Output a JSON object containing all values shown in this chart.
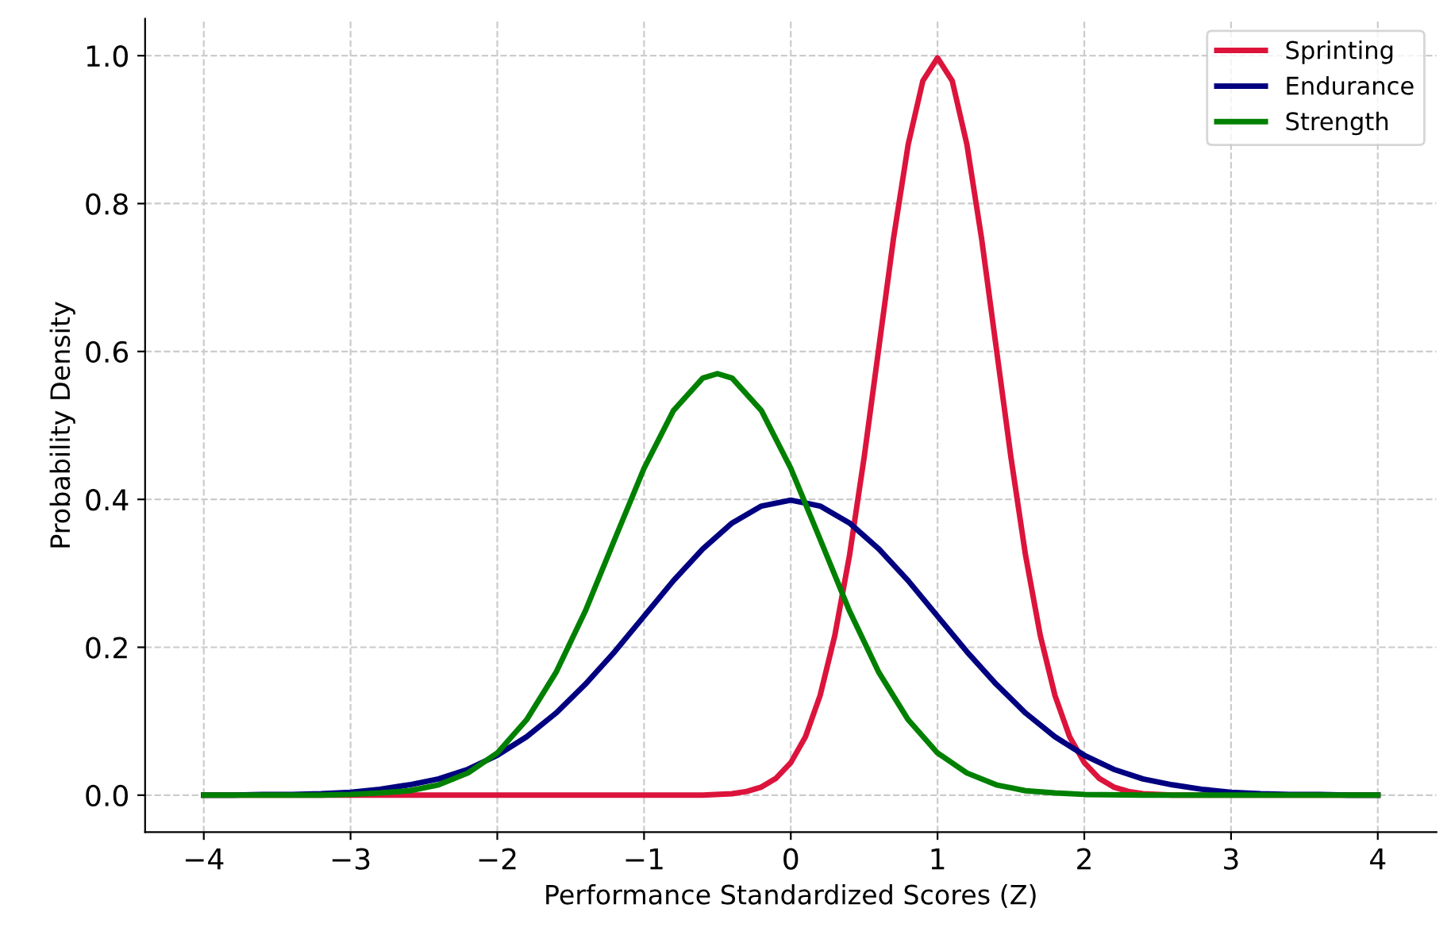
{
  "chart_data": {
    "type": "line",
    "xlabel": "Performance Standardized Scores (Z)",
    "ylabel": "Probability Density",
    "xlim": [
      -4.4,
      4.4
    ],
    "ylim": [
      -0.05,
      1.05
    ],
    "xticks": [
      -4,
      -3,
      -2,
      -1,
      0,
      1,
      2,
      3,
      4
    ],
    "yticks": [
      {
        "value": 0,
        "label": "0.0"
      },
      0.2,
      0.4,
      0.6,
      0.8,
      {
        "value": 1,
        "label": "1.0"
      }
    ],
    "grid": true,
    "legend": "top right",
    "marker": "none",
    "series": [
      {
        "name": "Sprinting",
        "color": "#dc143c",
        "x": [
          -4,
          -2,
          -1,
          -0.6,
          -0.4,
          -0.3,
          -0.2,
          -0.1,
          0,
          0.1,
          0.2,
          0.3,
          0.4,
          0.5,
          0.6,
          0.7,
          0.8,
          0.9,
          1.0,
          1.1,
          1.2,
          1.3,
          1.4,
          1.5,
          1.6,
          1.7,
          1.8,
          1.9,
          2.0,
          2.1,
          2.2,
          2.3,
          2.4,
          2.6,
          3,
          4
        ],
        "values": [
          0,
          0,
          0,
          0,
          0.002,
          0.005,
          0.011,
          0.023,
          0.044,
          0.079,
          0.135,
          0.216,
          0.324,
          0.457,
          0.605,
          0.753,
          0.88,
          0.966,
          0.997,
          0.966,
          0.88,
          0.753,
          0.605,
          0.457,
          0.324,
          0.216,
          0.135,
          0.079,
          0.044,
          0.023,
          0.011,
          0.005,
          0.002,
          0,
          0,
          0
        ]
      },
      {
        "name": "Endurance",
        "color": "#000080",
        "x": [
          -4,
          -3.8,
          -3.6,
          -3.4,
          -3.2,
          -3,
          -2.8,
          -2.6,
          -2.4,
          -2.2,
          -2,
          -1.8,
          -1.6,
          -1.4,
          -1.2,
          -1,
          -0.8,
          -0.6,
          -0.4,
          -0.2,
          0,
          0.2,
          0.4,
          0.6,
          0.8,
          1,
          1.2,
          1.4,
          1.6,
          1.8,
          2,
          2.2,
          2.4,
          2.6,
          2.8,
          3,
          3.2,
          3.4,
          3.6,
          3.8,
          4
        ],
        "values": [
          0,
          0,
          0.001,
          0.001,
          0.002,
          0.004,
          0.008,
          0.014,
          0.022,
          0.035,
          0.054,
          0.079,
          0.111,
          0.15,
          0.194,
          0.242,
          0.29,
          0.333,
          0.368,
          0.391,
          0.399,
          0.391,
          0.368,
          0.333,
          0.29,
          0.242,
          0.194,
          0.15,
          0.111,
          0.079,
          0.054,
          0.035,
          0.022,
          0.014,
          0.008,
          0.004,
          0.002,
          0.001,
          0.001,
          0,
          0
        ]
      },
      {
        "name": "Strength",
        "color": "#008000",
        "x": [
          -4,
          -3.6,
          -3.2,
          -3,
          -2.8,
          -2.6,
          -2.4,
          -2.2,
          -2,
          -1.8,
          -1.6,
          -1.4,
          -1.2,
          -1,
          -0.8,
          -0.6,
          -0.5,
          -0.4,
          -0.2,
          0,
          0.2,
          0.4,
          0.6,
          0.8,
          1,
          1.2,
          1.4,
          1.6,
          1.8,
          2,
          2.4,
          3,
          4
        ],
        "values": [
          0,
          0,
          0,
          0.001,
          0.003,
          0.006,
          0.014,
          0.03,
          0.057,
          0.102,
          0.166,
          0.249,
          0.346,
          0.442,
          0.52,
          0.564,
          0.57,
          0.564,
          0.52,
          0.442,
          0.346,
          0.249,
          0.166,
          0.102,
          0.057,
          0.03,
          0.014,
          0.006,
          0.003,
          0.001,
          0,
          0,
          0
        ]
      }
    ]
  }
}
